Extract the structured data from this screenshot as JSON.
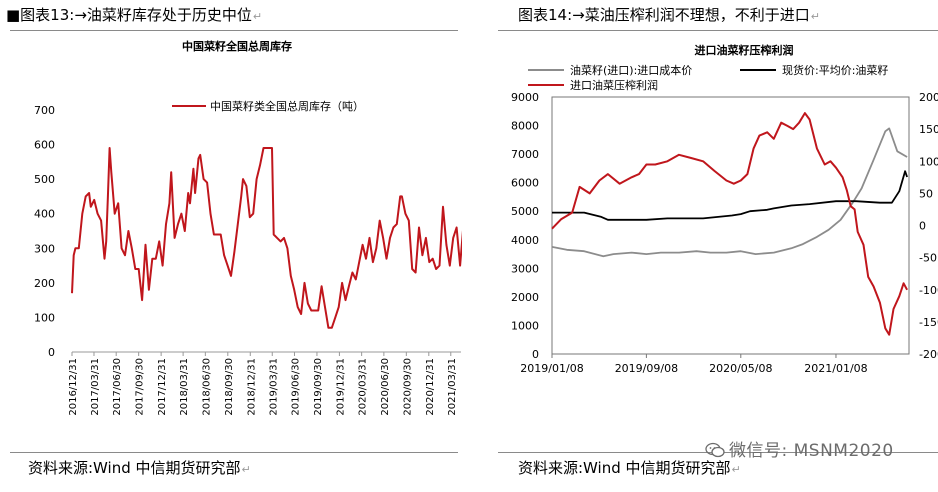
{
  "left": {
    "figure_title": "■图表13:→油菜籽库存处于历史中位",
    "source": "资料来源:Wind  中信期货研究部"
  },
  "right": {
    "figure_title": "图表14:→菜油压榨利润不理想，不利于进口",
    "source": "资料来源:Wind  中信期货研究部"
  },
  "watermark": "微信号: MSNM2020",
  "colors": {
    "red": "#c0161c",
    "gray": "#8c8c8c",
    "black": "#000000"
  },
  "chart_data": [
    {
      "type": "line",
      "title": "中国菜籽全国总周库存",
      "ylim": [
        0,
        700
      ],
      "yticks": [
        0,
        100,
        200,
        300,
        400,
        500,
        600,
        700
      ],
      "xlim": [
        "2016-12-31",
        "2021-06-30"
      ],
      "xticks": [
        "2016/12/31",
        "2017/03/31",
        "2017/06/30",
        "2017/09/30",
        "2017/12/31",
        "2018/03/31",
        "2018/06/30",
        "2018/09/30",
        "2018/12/31",
        "2019/03/31",
        "2019/06/30",
        "2019/09/30",
        "2019/12/31",
        "2020/03/31",
        "2020/06/30",
        "2020/09/30",
        "2020/12/31",
        "2021/03/31"
      ],
      "legend": "top-left",
      "grid": false,
      "series": [
        {
          "name": "中国菜籽类全国总周库存（吨）",
          "color": "#c0161c",
          "points": [
            [
              "2016-12-31",
              170
            ],
            [
              "2017-01-07",
              280
            ],
            [
              "2017-01-14",
              300
            ],
            [
              "2017-01-28",
              300
            ],
            [
              "2017-02-11",
              400
            ],
            [
              "2017-02-25",
              450
            ],
            [
              "2017-03-11",
              460
            ],
            [
              "2017-03-18",
              420
            ],
            [
              "2017-04-01",
              440
            ],
            [
              "2017-04-15",
              400
            ],
            [
              "2017-04-29",
              380
            ],
            [
              "2017-05-13",
              270
            ],
            [
              "2017-05-20",
              320
            ],
            [
              "2017-05-27",
              450
            ],
            [
              "2017-06-03",
              590
            ],
            [
              "2017-06-10",
              520
            ],
            [
              "2017-06-24",
              400
            ],
            [
              "2017-07-08",
              430
            ],
            [
              "2017-07-22",
              300
            ],
            [
              "2017-08-05",
              280
            ],
            [
              "2017-08-19",
              350
            ],
            [
              "2017-09-02",
              300
            ],
            [
              "2017-09-16",
              240
            ],
            [
              "2017-09-30",
              240
            ],
            [
              "2017-10-14",
              150
            ],
            [
              "2017-10-28",
              310
            ],
            [
              "2017-11-11",
              180
            ],
            [
              "2017-11-25",
              270
            ],
            [
              "2017-12-09",
              270
            ],
            [
              "2017-12-23",
              320
            ],
            [
              "2018-01-06",
              250
            ],
            [
              "2018-01-20",
              370
            ],
            [
              "2018-02-03",
              430
            ],
            [
              "2018-02-10",
              520
            ],
            [
              "2018-02-24",
              330
            ],
            [
              "2018-03-10",
              370
            ],
            [
              "2018-03-24",
              400
            ],
            [
              "2018-04-07",
              350
            ],
            [
              "2018-04-21",
              460
            ],
            [
              "2018-04-28",
              430
            ],
            [
              "2018-05-12",
              530
            ],
            [
              "2018-05-19",
              460
            ],
            [
              "2018-06-02",
              560
            ],
            [
              "2018-06-09",
              570
            ],
            [
              "2018-06-23",
              500
            ],
            [
              "2018-07-07",
              490
            ],
            [
              "2018-07-21",
              400
            ],
            [
              "2018-08-04",
              340
            ],
            [
              "2018-08-18",
              340
            ],
            [
              "2018-09-01",
              340
            ],
            [
              "2018-09-15",
              280
            ],
            [
              "2018-09-29",
              250
            ],
            [
              "2018-10-13",
              220
            ],
            [
              "2018-10-27",
              290
            ],
            [
              "2018-11-10",
              370
            ],
            [
              "2018-11-24",
              450
            ],
            [
              "2018-12-01",
              500
            ],
            [
              "2018-12-15",
              480
            ],
            [
              "2018-12-29",
              390
            ],
            [
              "2019-01-12",
              400
            ],
            [
              "2019-01-26",
              500
            ],
            [
              "2019-02-09",
              540
            ],
            [
              "2019-02-23",
              590
            ],
            [
              "2019-03-16",
              590
            ],
            [
              "2019-03-30",
              590
            ],
            [
              "2019-04-06",
              340
            ],
            [
              "2019-04-20",
              330
            ],
            [
              "2019-05-04",
              320
            ],
            [
              "2019-05-18",
              330
            ],
            [
              "2019-06-01",
              300
            ],
            [
              "2019-06-15",
              220
            ],
            [
              "2019-06-29",
              180
            ],
            [
              "2019-07-13",
              130
            ],
            [
              "2019-07-27",
              110
            ],
            [
              "2019-08-10",
              200
            ],
            [
              "2019-08-24",
              140
            ],
            [
              "2019-09-07",
              120
            ],
            [
              "2019-09-21",
              120
            ],
            [
              "2019-10-05",
              120
            ],
            [
              "2019-10-19",
              190
            ],
            [
              "2019-11-02",
              130
            ],
            [
              "2019-11-16",
              70
            ],
            [
              "2019-11-30",
              70
            ],
            [
              "2019-12-14",
              100
            ],
            [
              "2019-12-28",
              130
            ],
            [
              "2020-01-11",
              200
            ],
            [
              "2020-01-25",
              150
            ],
            [
              "2020-02-08",
              190
            ],
            [
              "2020-02-22",
              230
            ],
            [
              "2020-03-07",
              210
            ],
            [
              "2020-03-21",
              260
            ],
            [
              "2020-04-04",
              310
            ],
            [
              "2020-04-18",
              270
            ],
            [
              "2020-05-02",
              330
            ],
            [
              "2020-05-16",
              260
            ],
            [
              "2020-05-30",
              300
            ],
            [
              "2020-06-13",
              380
            ],
            [
              "2020-06-27",
              330
            ],
            [
              "2020-07-11",
              270
            ],
            [
              "2020-07-25",
              330
            ],
            [
              "2020-08-08",
              360
            ],
            [
              "2020-08-22",
              370
            ],
            [
              "2020-09-05",
              450
            ],
            [
              "2020-09-12",
              450
            ],
            [
              "2020-09-26",
              400
            ],
            [
              "2020-10-10",
              380
            ],
            [
              "2020-10-24",
              240
            ],
            [
              "2020-11-07",
              230
            ],
            [
              "2020-11-21",
              360
            ],
            [
              "2020-12-05",
              280
            ],
            [
              "2020-12-19",
              330
            ],
            [
              "2021-01-02",
              260
            ],
            [
              "2021-01-16",
              270
            ],
            [
              "2021-01-30",
              240
            ],
            [
              "2021-02-13",
              250
            ],
            [
              "2021-02-27",
              420
            ],
            [
              "2021-03-13",
              310
            ],
            [
              "2021-03-27",
              250
            ],
            [
              "2021-04-10",
              330
            ],
            [
              "2021-04-24",
              360
            ],
            [
              "2021-05-08",
              250
            ],
            [
              "2021-05-22",
              370
            ],
            [
              "2021-06-01",
              330
            ]
          ]
        }
      ]
    },
    {
      "type": "line",
      "title": "进口油菜籽压榨利润",
      "ylim_left": [
        0,
        9000
      ],
      "yticks_left": [
        0,
        1000,
        2000,
        3000,
        4000,
        5000,
        6000,
        7000,
        8000,
        9000
      ],
      "ylim_right": [
        -200,
        200
      ],
      "yticks_right": [
        -200,
        -150,
        -100,
        -50,
        0,
        50,
        100,
        150,
        200
      ],
      "xlim": [
        "2019-01-08",
        "2021-07-15"
      ],
      "xticks": [
        "2019/01/08",
        "2019/09/08",
        "2020/05/08",
        "2021/01/08"
      ],
      "legend": "top",
      "grid": false,
      "series": [
        {
          "name": "油菜籽(进口):进口成本价",
          "color": "#8c8c8c",
          "axis": "left",
          "points": [
            [
              "2019-01-08",
              3750
            ],
            [
              "2019-02-15",
              3650
            ],
            [
              "2019-04-01",
              3600
            ],
            [
              "2019-05-20",
              3420
            ],
            [
              "2019-06-15",
              3500
            ],
            [
              "2019-08-01",
              3550
            ],
            [
              "2019-09-08",
              3500
            ],
            [
              "2019-10-15",
              3550
            ],
            [
              "2019-12-01",
              3550
            ],
            [
              "2020-01-15",
              3600
            ],
            [
              "2020-02-20",
              3550
            ],
            [
              "2020-04-01",
              3550
            ],
            [
              "2020-05-08",
              3600
            ],
            [
              "2020-06-15",
              3500
            ],
            [
              "2020-08-01",
              3550
            ],
            [
              "2020-09-15",
              3700
            ],
            [
              "2020-10-15",
              3850
            ],
            [
              "2020-11-20",
              4100
            ],
            [
              "2020-12-20",
              4350
            ],
            [
              "2021-01-20",
              4700
            ],
            [
              "2021-02-20",
              5300
            ],
            [
              "2021-03-15",
              5800
            ],
            [
              "2021-04-15",
              6800
            ],
            [
              "2021-05-15",
              7800
            ],
            [
              "2021-05-25",
              7900
            ],
            [
              "2021-06-15",
              7100
            ],
            [
              "2021-07-10",
              6900
            ]
          ]
        },
        {
          "name": "现货价:平均价:油菜籽",
          "color": "#000000",
          "axis": "left",
          "points": [
            [
              "2019-01-08",
              4950
            ],
            [
              "2019-04-01",
              4950
            ],
            [
              "2019-05-15",
              4800
            ],
            [
              "2019-06-01",
              4700
            ],
            [
              "2019-09-08",
              4700
            ],
            [
              "2019-11-01",
              4750
            ],
            [
              "2020-02-01",
              4750
            ],
            [
              "2020-04-15",
              4850
            ],
            [
              "2020-05-08",
              4900
            ],
            [
              "2020-06-01",
              5000
            ],
            [
              "2020-07-15",
              5050
            ],
            [
              "2020-08-01",
              5100
            ],
            [
              "2020-09-15",
              5200
            ],
            [
              "2020-11-01",
              5250
            ],
            [
              "2021-01-08",
              5350
            ],
            [
              "2021-03-01",
              5350
            ],
            [
              "2021-05-01",
              5300
            ],
            [
              "2021-06-01",
              5300
            ],
            [
              "2021-06-20",
              5700
            ],
            [
              "2021-07-05",
              6400
            ],
            [
              "2021-07-10",
              6200
            ]
          ]
        },
        {
          "name": "进口油菜压榨利润",
          "color": "#c0161c",
          "axis": "right",
          "points": [
            [
              "2019-01-08",
              -5
            ],
            [
              "2019-02-01",
              10
            ],
            [
              "2019-03-01",
              20
            ],
            [
              "2019-03-20",
              60
            ],
            [
              "2019-04-15",
              50
            ],
            [
              "2019-05-10",
              70
            ],
            [
              "2019-06-01",
              80
            ],
            [
              "2019-07-01",
              65
            ],
            [
              "2019-08-01",
              75
            ],
            [
              "2019-08-20",
              80
            ],
            [
              "2019-09-08",
              95
            ],
            [
              "2019-10-01",
              95
            ],
            [
              "2019-11-01",
              100
            ],
            [
              "2019-12-01",
              110
            ],
            [
              "2020-01-01",
              105
            ],
            [
              "2020-02-01",
              100
            ],
            [
              "2020-03-01",
              85
            ],
            [
              "2020-04-01",
              70
            ],
            [
              "2020-04-20",
              65
            ],
            [
              "2020-05-08",
              70
            ],
            [
              "2020-05-25",
              80
            ],
            [
              "2020-06-10",
              120
            ],
            [
              "2020-06-25",
              140
            ],
            [
              "2020-07-15",
              145
            ],
            [
              "2020-08-01",
              135
            ],
            [
              "2020-08-20",
              160
            ],
            [
              "2020-09-05",
              155
            ],
            [
              "2020-09-20",
              150
            ],
            [
              "2020-10-05",
              160
            ],
            [
              "2020-10-20",
              175
            ],
            [
              "2020-11-01",
              165
            ],
            [
              "2020-11-20",
              120
            ],
            [
              "2020-12-10",
              95
            ],
            [
              "2020-12-25",
              100
            ],
            [
              "2021-01-08",
              90
            ],
            [
              "2021-01-25",
              75
            ],
            [
              "2021-02-05",
              55
            ],
            [
              "2021-02-15",
              30
            ],
            [
              "2021-02-25",
              25
            ],
            [
              "2021-03-05",
              -10
            ],
            [
              "2021-03-20",
              -30
            ],
            [
              "2021-04-01",
              -80
            ],
            [
              "2021-04-15",
              -95
            ],
            [
              "2021-05-01",
              -120
            ],
            [
              "2021-05-15",
              -160
            ],
            [
              "2021-05-25",
              -170
            ],
            [
              "2021-06-05",
              -130
            ],
            [
              "2021-06-20",
              -110
            ],
            [
              "2021-07-01",
              -90
            ],
            [
              "2021-07-10",
              -100
            ]
          ]
        }
      ]
    }
  ]
}
